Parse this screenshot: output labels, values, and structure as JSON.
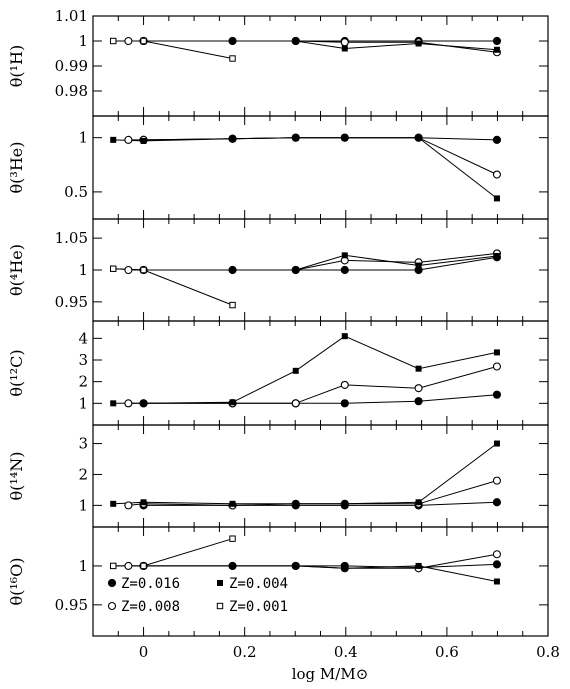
{
  "chart_data": {
    "type": "line",
    "xlabel": "log M/M⊙",
    "xlim": [
      -0.1,
      0.8
    ],
    "xticks": [
      "0",
      "0.2",
      "0.4",
      "0.6",
      "0.8"
    ],
    "legend": {
      "placement": "inside bottom panel, lower-left",
      "entries": [
        {
          "label": "Z=0.016",
          "marker": "filled-circle"
        },
        {
          "label": "Z=0.004",
          "marker": "filled-square"
        },
        {
          "label": "Z=0.008",
          "marker": "open-circle"
        },
        {
          "label": "Z=0.001",
          "marker": "open-square"
        }
      ]
    },
    "panels": [
      {
        "ylabel": "θ(¹H)",
        "ylim": [
          0.97,
          1.01
        ],
        "yticks": [
          "0.98",
          "0.99",
          "1",
          "1.01"
        ],
        "series": [
          {
            "label": "Z=0.016",
            "x": [
              0,
              0.176,
              0.301,
              0.398,
              0.544,
              0.699
            ],
            "y": [
              1.0,
              1.0,
              1.0,
              1.0,
              1.0,
              1.0
            ]
          },
          {
            "label": "Z=0.008",
            "x": [
              -0.03,
              0,
              0.301,
              0.398,
              0.544,
              0.699
            ],
            "y": [
              1.0,
              1.0,
              1.0,
              0.9995,
              0.9995,
              0.9955
            ]
          },
          {
            "label": "Z=0.004",
            "x": [
              -0.06,
              0,
              0.301,
              0.398,
              0.544,
              0.699
            ],
            "y": [
              1.0,
              1.0,
              1.0,
              0.997,
              0.999,
              0.9965
            ]
          },
          {
            "label": "Z=0.001",
            "x": [
              -0.06,
              0,
              0.176
            ],
            "y": [
              1.0,
              1.0,
              0.993
            ]
          }
        ]
      },
      {
        "ylabel": "θ(³He)",
        "ylim": [
          0.25,
          1.2
        ],
        "yticks": [
          "0.5",
          "1"
        ],
        "series": [
          {
            "label": "Z=0.016",
            "x": [
              0,
              0.176,
              0.301,
              0.398,
              0.544,
              0.699
            ],
            "y": [
              0.98,
              0.99,
              1.0,
              1.0,
              1.0,
              0.98
            ]
          },
          {
            "label": "Z=0.008",
            "x": [
              -0.03,
              0,
              0.176,
              0.301,
              0.398,
              0.544,
              0.699
            ],
            "y": [
              0.98,
              0.98,
              0.99,
              1.0,
              1.0,
              1.0,
              0.66
            ]
          },
          {
            "label": "Z=0.004",
            "x": [
              -0.06,
              0,
              0.176,
              0.301,
              0.398,
              0.544,
              0.699
            ],
            "y": [
              0.98,
              0.97,
              0.99,
              1.0,
              1.0,
              1.0,
              0.44
            ]
          }
        ]
      },
      {
        "ylabel": "θ(⁴He)",
        "ylim": [
          0.92,
          1.08
        ],
        "yticks": [
          "0.95",
          "1",
          "1.05"
        ],
        "series": [
          {
            "label": "Z=0.016",
            "x": [
              0,
              0.176,
              0.301,
              0.398,
              0.544,
              0.699
            ],
            "y": [
              1.0,
              1.0,
              1.0,
              1.0,
              1.0,
              1.02
            ]
          },
          {
            "label": "Z=0.008",
            "x": [
              -0.03,
              0,
              0.301,
              0.398,
              0.544,
              0.699
            ],
            "y": [
              1.0,
              1.0,
              1.0,
              1.015,
              1.012,
              1.026
            ]
          },
          {
            "label": "Z=0.004",
            "x": [
              -0.06,
              0,
              0.301,
              0.398,
              0.544,
              0.699
            ],
            "y": [
              1.002,
              1.0,
              1.0,
              1.023,
              1.007,
              1.022
            ]
          },
          {
            "label": "Z=0.001",
            "x": [
              -0.06,
              0,
              0.176
            ],
            "y": [
              1.002,
              1.0,
              0.945
            ]
          }
        ]
      },
      {
        "ylabel": "θ(¹²C)",
        "ylim": [
          0,
          4.8
        ],
        "yticks": [
          "1",
          "2",
          "3",
          "4"
        ],
        "series": [
          {
            "label": "Z=0.016",
            "x": [
              0,
              0.176,
              0.301,
              0.398,
              0.544,
              0.699
            ],
            "y": [
              1.0,
              1.0,
              1.0,
              1.0,
              1.1,
              1.4
            ]
          },
          {
            "label": "Z=0.008",
            "x": [
              -0.03,
              0,
              0.176,
              0.301,
              0.398,
              0.544,
              0.699
            ],
            "y": [
              1.0,
              1.0,
              1.0,
              1.0,
              1.85,
              1.7,
              2.7
            ]
          },
          {
            "label": "Z=0.004",
            "x": [
              -0.06,
              0,
              0.176,
              0.301,
              0.398,
              0.544,
              0.699
            ],
            "y": [
              1.0,
              1.0,
              1.05,
              2.5,
              4.1,
              2.6,
              3.35
            ]
          }
        ]
      },
      {
        "ylabel": "θ(¹⁴N)",
        "ylim": [
          0.3,
          3.6
        ],
        "yticks": [
          "1",
          "2",
          "3"
        ],
        "series": [
          {
            "label": "Z=0.016",
            "x": [
              0,
              0.176,
              0.301,
              0.398,
              0.544,
              0.699
            ],
            "y": [
              1.0,
              1.0,
              1.0,
              1.0,
              1.0,
              1.1
            ]
          },
          {
            "label": "Z=0.008",
            "x": [
              -0.03,
              0,
              0.176,
              0.301,
              0.398,
              0.544,
              0.699
            ],
            "y": [
              1.0,
              1.05,
              1.0,
              1.05,
              1.05,
              1.05,
              1.8
            ]
          },
          {
            "label": "Z=0.004",
            "x": [
              -0.06,
              0,
              0.176,
              0.301,
              0.398,
              0.544,
              0.699
            ],
            "y": [
              1.05,
              1.1,
              1.05,
              1.05,
              1.05,
              1.1,
              3.0
            ]
          }
        ]
      },
      {
        "ylabel": "θ(¹⁶O)",
        "ylim": [
          0.91,
          1.05
        ],
        "yticks": [
          "0.95",
          "1"
        ],
        "series": [
          {
            "label": "Z=0.016",
            "x": [
              0,
              0.176,
              0.301,
              0.398,
              0.544,
              0.699
            ],
            "y": [
              1.0,
              1.0,
              1.0,
              1.0,
              0.998,
              1.002
            ]
          },
          {
            "label": "Z=0.008",
            "x": [
              -0.03,
              0,
              0.301,
              0.398,
              0.544,
              0.699
            ],
            "y": [
              1.0,
              1.0,
              1.0,
              0.997,
              0.997,
              1.015
            ]
          },
          {
            "label": "Z=0.004",
            "x": [
              -0.06,
              0,
              0.301,
              0.398,
              0.544,
              0.699
            ],
            "y": [
              1.0,
              1.0,
              1.0,
              0.997,
              1.0,
              0.98
            ]
          },
          {
            "label": "Z=0.001",
            "x": [
              -0.06,
              0,
              0.176
            ],
            "y": [
              1.0,
              1.0,
              1.035
            ]
          }
        ]
      }
    ]
  }
}
